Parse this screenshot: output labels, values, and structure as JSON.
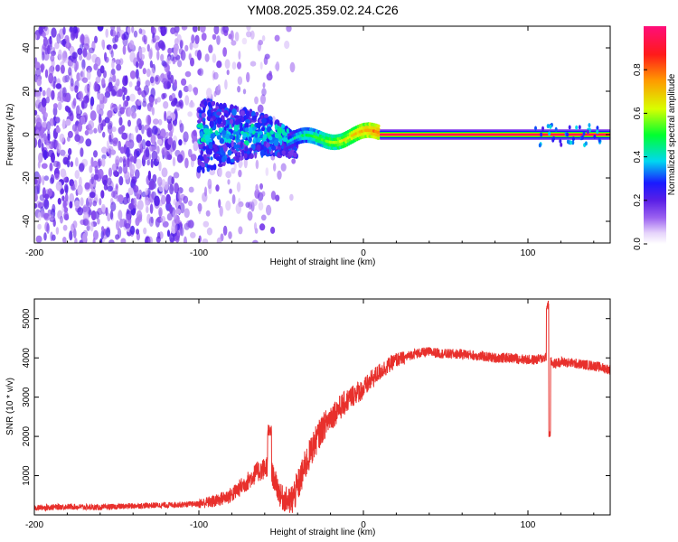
{
  "title": "YM08.2025.359.02.24.C26",
  "chart_data": [
    {
      "type": "heatmap",
      "name": "spectrogram",
      "xlabel": "Height of straight line (km)",
      "ylabel": "Frequency (Hz)",
      "xlim": [
        -200,
        150
      ],
      "ylim": [
        -50,
        50
      ],
      "xticks": [
        -200,
        -100,
        0,
        100
      ],
      "yticks": [
        -40,
        -20,
        0,
        20,
        40
      ],
      "colorbar": {
        "label": "Normalized spectral amplitude",
        "range": [
          0,
          1
        ],
        "ticks": [
          0,
          0.2,
          0.4,
          0.6,
          0.8
        ],
        "tick_labels": [
          "0.0",
          "0.2",
          "0.4",
          "0.6",
          "0.8"
        ]
      },
      "features": {
        "noise_region_x": [
          -200,
          -45
        ],
        "carrier_frequency_hz": 0,
        "carrier_start_x": -45,
        "carrier_end_x": 150,
        "carrier_peak_amplitude": 0.95
      }
    },
    {
      "type": "line",
      "name": "snr",
      "xlabel": "Height of straight line (km)",
      "ylabel": "SNR (10 * v/v)",
      "xlim": [
        -200,
        150
      ],
      "ylim": [
        0,
        5500
      ],
      "xticks": [
        -200,
        -100,
        0,
        100
      ],
      "yticks": [
        1000,
        2000,
        3000,
        4000,
        5000
      ],
      "series": [
        {
          "name": "SNR",
          "color": "#e8302c",
          "x": [
            -200,
            -180,
            -160,
            -140,
            -120,
            -100,
            -90,
            -80,
            -70,
            -65,
            -60,
            -58,
            -55,
            -50,
            -45,
            -40,
            -35,
            -30,
            -25,
            -20,
            -15,
            -10,
            -5,
            0,
            5,
            10,
            15,
            20,
            25,
            30,
            40,
            50,
            60,
            70,
            80,
            90,
            100,
            105,
            110,
            112,
            114,
            116,
            120,
            130,
            140,
            150
          ],
          "values": [
            150,
            180,
            160,
            200,
            220,
            250,
            300,
            450,
            800,
            1000,
            1100,
            1200,
            900,
            350,
            250,
            700,
            1300,
            1800,
            2200,
            2500,
            2700,
            2900,
            3100,
            3200,
            3450,
            3650,
            3800,
            3950,
            4000,
            4100,
            4150,
            4100,
            4100,
            4050,
            4000,
            4000,
            3950,
            3950,
            4000,
            4100,
            3900,
            3850,
            3900,
            3850,
            3800,
            3700
          ]
        }
      ],
      "annotations": {
        "spike_x": -57,
        "spike_y": 2400,
        "spike2_x": 112,
        "spike2_max": 5500,
        "spike2_min": 1950
      }
    }
  ]
}
